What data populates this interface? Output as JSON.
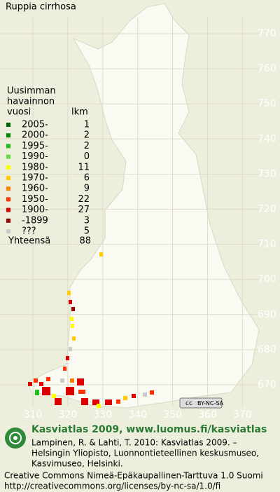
{
  "title": "Ruppia cirrhosa",
  "grid": {
    "northing": [
      770,
      760,
      750,
      740,
      730,
      720,
      710,
      700,
      690,
      680,
      670
    ],
    "easting": [
      310,
      320,
      330,
      340,
      350,
      360,
      370
    ]
  },
  "legend": {
    "header": [
      "Uusimman",
      "havainnon",
      "vuosi"
    ],
    "count_header": "lkm",
    "rows": [
      {
        "label": "2005-",
        "count": 1,
        "color": "#006600"
      },
      {
        "label": "2000-",
        "count": 2,
        "color": "#008c00"
      },
      {
        "label": "1995-",
        "count": 2,
        "color": "#1fbf1f"
      },
      {
        "label": "1990-",
        "count": 0,
        "color": "#66dd44"
      },
      {
        "label": "1980-",
        "count": 11,
        "color": "#ffff00"
      },
      {
        "label": "1970-",
        "count": 6,
        "color": "#ffcc00"
      },
      {
        "label": "1960-",
        "count": 9,
        "color": "#ff8000"
      },
      {
        "label": "1950-",
        "count": 22,
        "color": "#ff3300"
      },
      {
        "label": "1900-",
        "count": 27,
        "color": "#dd0000"
      },
      {
        "label": "-1899",
        "count": 3,
        "color": "#990000"
      },
      {
        "label": "???",
        "count": 5,
        "color": "#cccccc"
      }
    ],
    "total_label": "Yhteensä",
    "total": 88
  },
  "badge": [
    "cc",
    "BY-NC-SA"
  ],
  "footer": {
    "heading": "Kasviatlas 2009, www.luomus.fi/kasviatlas",
    "citation": [
      "Lampinen, R. & Lahti, T. 2010: Kasviatlas 2009. –",
      "Helsingin Yliopisto, Luonnontieteellinen keskusmuseo,",
      "Kasvimuseo, Helsinki."
    ],
    "license": [
      "Creative Commons Nimeä-Epäkaupallinen-Tarttuva 1.0 Suomi",
      "http://creativecommons.org/licenses/by-nc-sa/1.0/fi"
    ]
  }
}
